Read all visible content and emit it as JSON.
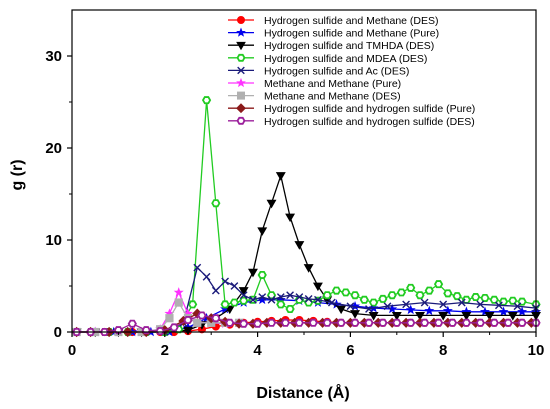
{
  "chart_data": {
    "type": "line",
    "title": "",
    "xlabel": "Distance (Å)",
    "ylabel": "g (r)",
    "xlim": [
      0,
      10
    ],
    "ylim": [
      0,
      35
    ],
    "xticks": [
      0,
      2,
      4,
      6,
      8,
      10
    ],
    "yticks": [
      0,
      10,
      20,
      30
    ],
    "grid": false,
    "legend_position": "top-right",
    "series": [
      {
        "name": "Hydrogen sulfide and Methane (DES)",
        "color": "#ff0000",
        "marker": "circle",
        "filled": true,
        "x": [
          0.1,
          0.4,
          0.7,
          1.0,
          1.3,
          1.6,
          1.9,
          2.2,
          2.5,
          2.8,
          3.1,
          3.4,
          3.7,
          4.0,
          4.3,
          4.6,
          4.9,
          5.2,
          5.5,
          5.8,
          6.1,
          6.4,
          6.7,
          7.0,
          7.3,
          7.6,
          7.9,
          8.2,
          8.5,
          8.8,
          9.1,
          9.4,
          9.7,
          10.0
        ],
        "y": [
          0,
          0,
          0,
          0,
          0,
          0,
          0,
          0,
          0.1,
          0.3,
          0.6,
          0.8,
          1.0,
          1.1,
          1.2,
          1.3,
          1.3,
          1.2,
          1.1,
          1.0,
          1.0,
          1.0,
          1.0,
          1.0,
          1.0,
          1.0,
          1.0,
          1.0,
          1.0,
          1.0,
          1.0,
          1.0,
          1.0,
          1.0
        ]
      },
      {
        "name": "Hydrogen sulfide and Methane (Pure)",
        "color": "#0000ee",
        "marker": "star",
        "filled": true,
        "x": [
          0.1,
          0.5,
          0.9,
          1.3,
          1.7,
          2.1,
          2.5,
          2.9,
          3.3,
          3.7,
          4.1,
          4.5,
          4.9,
          5.3,
          5.7,
          6.1,
          6.5,
          6.9,
          7.3,
          7.7,
          8.1,
          8.5,
          8.9,
          9.3,
          9.7,
          10.0
        ],
        "y": [
          0,
          0,
          0,
          0,
          0,
          0,
          0.5,
          1.5,
          2.5,
          3.2,
          3.5,
          3.5,
          3.4,
          3.2,
          3.0,
          2.8,
          2.6,
          2.5,
          2.4,
          2.3,
          2.3,
          2.2,
          2.2,
          2.2,
          2.2,
          2.2
        ]
      },
      {
        "name": "Hydrogen sulfide and TMHDA (DES)",
        "color": "#000000",
        "marker": "triangle-down",
        "filled": true,
        "x": [
          0.1,
          0.5,
          1.0,
          1.5,
          2.0,
          2.5,
          2.8,
          3.1,
          3.4,
          3.7,
          3.9,
          4.1,
          4.3,
          4.5,
          4.7,
          4.9,
          5.1,
          5.3,
          5.5,
          5.8,
          6.1,
          6.5,
          7.0,
          7.5,
          8.0,
          8.5,
          9.0,
          9.5,
          10.0
        ],
        "y": [
          0,
          0,
          0,
          0,
          0,
          0.2,
          0.8,
          1.5,
          2.5,
          4.5,
          6.5,
          11,
          14,
          17,
          12.5,
          9.5,
          7.0,
          5.0,
          3.5,
          2.5,
          2.0,
          1.8,
          1.8,
          1.8,
          1.8,
          1.8,
          1.8,
          1.8,
          1.8
        ]
      },
      {
        "name": "Hydrogen sulfide and MDEA (DES)",
        "color": "#22cc22",
        "marker": "hexagon",
        "filled": false,
        "x": [
          0.1,
          0.4,
          0.8,
          1.2,
          1.6,
          2.0,
          2.3,
          2.6,
          2.9,
          3.1,
          3.3,
          3.5,
          3.7,
          3.9,
          4.1,
          4.3,
          4.5,
          4.7,
          4.9,
          5.1,
          5.3,
          5.5,
          5.7,
          5.9,
          6.1,
          6.3,
          6.5,
          6.7,
          6.9,
          7.1,
          7.3,
          7.5,
          7.7,
          7.9,
          8.1,
          8.3,
          8.5,
          8.7,
          8.9,
          9.1,
          9.3,
          9.5,
          9.7,
          10.0
        ],
        "y": [
          0,
          0,
          0,
          0,
          0,
          0,
          0.3,
          3.0,
          25.2,
          14.0,
          3.0,
          3.2,
          3.4,
          3.5,
          6.2,
          4.0,
          3.0,
          2.5,
          3.5,
          3.2,
          3.4,
          4.0,
          4.5,
          4.3,
          4.0,
          3.5,
          3.2,
          3.6,
          4.0,
          4.3,
          4.8,
          4.0,
          4.5,
          5.2,
          4.2,
          3.9,
          3.5,
          3.8,
          3.7,
          3.5,
          3.3,
          3.4,
          3.3,
          3.0
        ]
      },
      {
        "name": "Hydrogen sulfide and Ac (DES)",
        "color": "#1a1a7a",
        "marker": "x",
        "filled": false,
        "x": [
          0.1,
          0.5,
          1.0,
          1.5,
          2.0,
          2.4,
          2.7,
          2.9,
          3.1,
          3.3,
          3.5,
          3.7,
          3.9,
          4.1,
          4.3,
          4.5,
          4.7,
          4.9,
          5.1,
          5.3,
          5.6,
          6.0,
          6.4,
          6.8,
          7.2,
          7.6,
          8.0,
          8.4,
          8.8,
          9.2,
          9.6,
          10.0
        ],
        "y": [
          0,
          0,
          0,
          0,
          0,
          1.0,
          7.0,
          6.0,
          4.5,
          5.5,
          5.0,
          4.0,
          3.5,
          3.8,
          3.5,
          3.8,
          4.0,
          3.8,
          3.6,
          3.5,
          3.2,
          2.8,
          2.5,
          2.8,
          3.0,
          3.2,
          3.0,
          3.2,
          3.0,
          2.9,
          2.8,
          2.6
        ]
      },
      {
        "name": "Methane and Methane (Pure)",
        "color": "#ff33ff",
        "marker": "star",
        "filled": true,
        "x": [
          0.1,
          0.5,
          1.0,
          1.5,
          1.9,
          2.1,
          2.3,
          2.5,
          2.7,
          3.0,
          3.3,
          3.6
        ],
        "y": [
          0,
          0,
          0,
          0,
          0.3,
          2.0,
          4.3,
          2.0,
          1.0,
          1.0,
          0.9,
          1.0
        ]
      },
      {
        "name": "Methane and Methane (DES)",
        "color": "#b0b0b0",
        "marker": "square",
        "filled": true,
        "x": [
          0.1,
          0.5,
          1.0,
          1.5,
          1.9,
          2.1,
          2.3,
          2.5,
          2.7,
          3.0,
          3.3,
          3.6
        ],
        "y": [
          0,
          0,
          0,
          0,
          0.3,
          1.5,
          3.2,
          1.5,
          1.0,
          1.0,
          1.0,
          1.0
        ]
      },
      {
        "name": "Hydrogen sulfide and hydrogen sulfide (Pure)",
        "color": "#8b1a1a",
        "marker": "diamond",
        "filled": true,
        "x": [
          0.1,
          0.4,
          0.8,
          1.2,
          1.6,
          2.0,
          2.4,
          2.7,
          3.0,
          3.3,
          3.6,
          3.9,
          4.2,
          4.5,
          4.8,
          5.1,
          5.4,
          5.7,
          6.0,
          6.3,
          6.6,
          6.9,
          7.2,
          7.5,
          7.8,
          8.1,
          8.4,
          8.7,
          9.0,
          9.3,
          9.6,
          9.9
        ],
        "y": [
          0,
          0,
          0,
          0,
          0,
          0.2,
          1.2,
          2.0,
          1.5,
          1.1,
          0.9,
          0.9,
          1.0,
          1.0,
          1.0,
          1.0,
          1.0,
          1.0,
          1.0,
          1.0,
          1.0,
          1.0,
          1.0,
          1.0,
          1.0,
          1.0,
          1.0,
          1.0,
          1.0,
          1.0,
          1.0,
          1.0
        ]
      },
      {
        "name": "Hydrogen sulfide and hydrogen sulfide (DES)",
        "color": "#9b1f9b",
        "marker": "hexagon",
        "filled": false,
        "x": [
          0.1,
          0.4,
          0.7,
          1.0,
          1.3,
          1.6,
          1.9,
          2.2,
          2.5,
          2.8,
          3.1,
          3.4,
          3.7,
          4.0,
          4.3,
          4.6,
          4.9,
          5.2,
          5.5,
          5.8,
          6.1,
          6.4,
          6.7,
          7.0,
          7.3,
          7.6,
          7.9,
          8.2,
          8.5,
          8.8,
          9.1,
          9.4,
          9.7,
          10.0
        ],
        "y": [
          0,
          0,
          0,
          0.2,
          0.9,
          0.2,
          0.1,
          0.5,
          1.3,
          1.8,
          1.5,
          1.0,
          0.9,
          0.9,
          1.0,
          1.0,
          1.0,
          1.0,
          1.0,
          1.0,
          1.0,
          1.0,
          1.0,
          1.0,
          1.0,
          1.0,
          1.0,
          1.0,
          1.0,
          1.0,
          1.0,
          1.0,
          1.0,
          1.0
        ]
      }
    ]
  }
}
